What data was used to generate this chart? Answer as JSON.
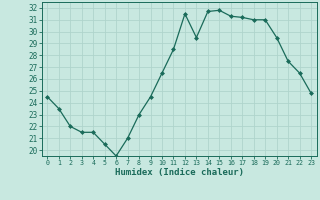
{
  "x": [
    0,
    1,
    2,
    3,
    4,
    5,
    6,
    7,
    8,
    9,
    10,
    11,
    12,
    13,
    14,
    15,
    16,
    17,
    18,
    19,
    20,
    21,
    22,
    23
  ],
  "y": [
    24.5,
    23.5,
    22.0,
    21.5,
    21.5,
    20.5,
    19.5,
    21.0,
    23.0,
    24.5,
    26.5,
    28.5,
    31.5,
    29.5,
    31.7,
    31.8,
    31.3,
    31.2,
    31.0,
    31.0,
    29.5,
    27.5,
    26.5,
    24.8
  ],
  "line_color": "#1a6b5a",
  "marker": "D",
  "marker_size": 2.0,
  "bg_color": "#c8e8e0",
  "grid_color": "#afd4cc",
  "xlabel": "Humidex (Indice chaleur)",
  "ylabel_ticks": [
    20,
    21,
    22,
    23,
    24,
    25,
    26,
    27,
    28,
    29,
    30,
    31,
    32
  ],
  "ylim": [
    19.5,
    32.5
  ],
  "xlim": [
    -0.5,
    23.5
  ],
  "tick_color": "#1a6b5a",
  "label_color": "#1a6b5a"
}
